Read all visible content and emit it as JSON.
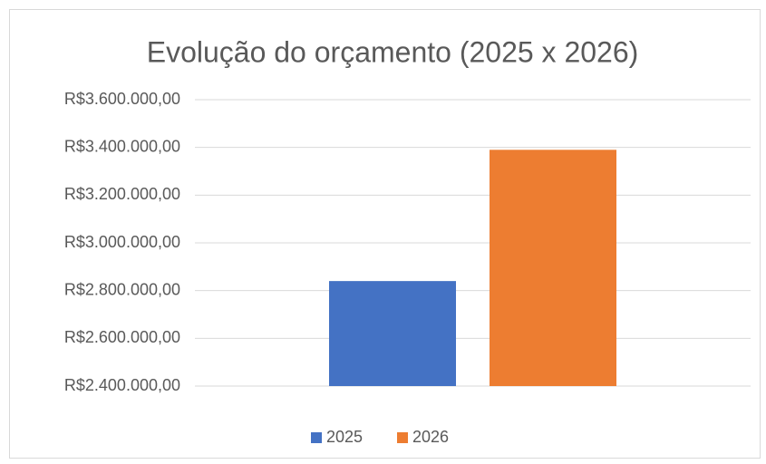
{
  "chart_data": {
    "type": "bar",
    "title": "Evolução do orçamento (2025 x 2026)",
    "categories": [
      null
    ],
    "series": [
      {
        "name": "2025",
        "color": "#4472c4",
        "values": [
          2840000
        ]
      },
      {
        "name": "2026",
        "color": "#ed7d31",
        "values": [
          3390000
        ]
      }
    ],
    "ylim": [
      2400000,
      3600000
    ],
    "yticks": [
      {
        "value": 2400000,
        "label": "R$2.400.000,00"
      },
      {
        "value": 2600000,
        "label": "R$2.600.000,00"
      },
      {
        "value": 2800000,
        "label": "R$2.800.000,00"
      },
      {
        "value": 3000000,
        "label": "R$3.000.000,00"
      },
      {
        "value": 3200000,
        "label": "R$3.200.000,00"
      },
      {
        "value": 3400000,
        "label": "R$3.400.000,00"
      },
      {
        "value": 3600000,
        "label": "R$3.600.000,00"
      }
    ],
    "grid": true,
    "legend": "bottom"
  }
}
